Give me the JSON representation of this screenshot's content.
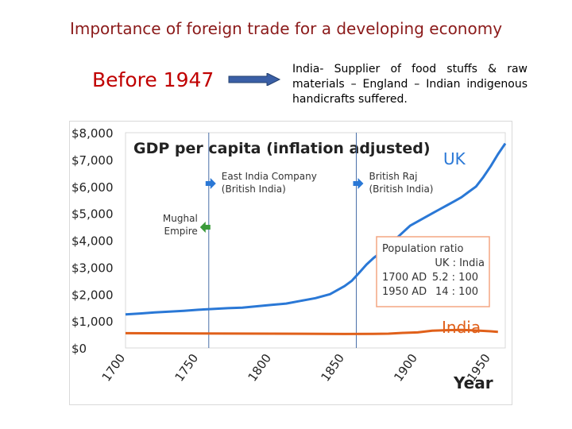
{
  "slide": {
    "title": "Importance of foreign trade for a developing economy",
    "period_label": "Before 1947",
    "description": "India- Supplier of food stuffs & raw materials – England – Indian indigenous handicrafts suffered."
  },
  "colors": {
    "title": "#8b1a1a",
    "period": "#c00000",
    "arrow": "#3a5fa6",
    "uk_line": "#2a78d6",
    "india_line": "#e0601a",
    "event_arrow": "#2a78d6",
    "mughal_arrow": "#3a9a3a",
    "ratio_box": "#f4a582"
  },
  "chart_data": {
    "type": "line",
    "title": "GDP per capita (inflation adjusted)",
    "xlabel": "Year",
    "ylabel": "",
    "xlim": [
      1700,
      1960
    ],
    "ylim": [
      0,
      8000
    ],
    "x_ticks": [
      "1700",
      "1750",
      "1800",
      "1850",
      "1900",
      "1950"
    ],
    "y_ticks": [
      "$0",
      "$1,000",
      "$2,000",
      "$3,000",
      "$4,000",
      "$5,000",
      "$6,000",
      "$7,000",
      "$8,000"
    ],
    "grid": false,
    "series": [
      {
        "name": "UK",
        "x": [
          1700,
          1710,
          1720,
          1730,
          1740,
          1750,
          1760,
          1770,
          1780,
          1790,
          1800,
          1810,
          1820,
          1830,
          1840,
          1850,
          1855,
          1860,
          1865,
          1870,
          1875,
          1880,
          1885,
          1890,
          1895,
          1900,
          1905,
          1910,
          1915,
          1920,
          1925,
          1930,
          1935,
          1940,
          1945,
          1950,
          1955,
          1960
        ],
        "values": [
          1250,
          1280,
          1320,
          1350,
          1380,
          1420,
          1450,
          1480,
          1500,
          1550,
          1600,
          1650,
          1750,
          1850,
          2000,
          2300,
          2500,
          2800,
          3100,
          3350,
          3550,
          3800,
          4050,
          4300,
          4550,
          4700,
          4850,
          5000,
          5150,
          5300,
          5450,
          5600,
          5800,
          6000,
          6350,
          6750,
          7200,
          7600
        ]
      },
      {
        "name": "India",
        "x": [
          1700,
          1750,
          1800,
          1850,
          1870,
          1880,
          1890,
          1900,
          1910,
          1920,
          1930,
          1940,
          1950,
          1955
        ],
        "values": [
          550,
          540,
          530,
          520,
          525,
          530,
          560,
          580,
          640,
          660,
          670,
          650,
          620,
          600
        ]
      }
    ],
    "events": [
      {
        "year": 1757,
        "label": [
          "East India Company",
          "(British India)"
        ]
      },
      {
        "year": 1858,
        "label": [
          "British Raj",
          "(British India)"
        ]
      }
    ],
    "mughal_label": [
      "Mughal",
      "Empire"
    ],
    "ratio_box": {
      "title": "Population ratio",
      "header": "UK : India",
      "rows": [
        {
          "year": "1700 AD",
          "ratio": "5.2 : 100"
        },
        {
          "year": "1950 AD",
          "ratio": "14 : 100"
        }
      ]
    }
  }
}
